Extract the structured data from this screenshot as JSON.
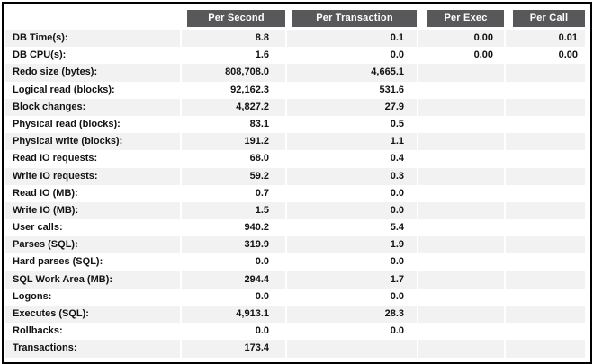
{
  "colors": {
    "header_bg": "#58585a",
    "header_text": "#ffffff",
    "row_alt_bg": "#f2f2f2",
    "frame_border": "#000000"
  },
  "table": {
    "name": "load-profile-statistics",
    "columns": [
      "Per Second",
      "Per Transaction",
      "Per Exec",
      "Per Call"
    ],
    "rows": [
      {
        "label": "DB Time(s):",
        "per_second": "8.8",
        "per_transaction": "0.1",
        "per_exec": "0.00",
        "per_call": "0.01"
      },
      {
        "label": "DB CPU(s):",
        "per_second": "1.6",
        "per_transaction": "0.0",
        "per_exec": "0.00",
        "per_call": "0.00"
      },
      {
        "label": "Redo size (bytes):",
        "per_second": "808,708.0",
        "per_transaction": "4,665.1",
        "per_exec": "",
        "per_call": ""
      },
      {
        "label": "Logical read (blocks):",
        "per_second": "92,162.3",
        "per_transaction": "531.6",
        "per_exec": "",
        "per_call": ""
      },
      {
        "label": "Block changes:",
        "per_second": "4,827.2",
        "per_transaction": "27.9",
        "per_exec": "",
        "per_call": ""
      },
      {
        "label": "Physical read (blocks):",
        "per_second": "83.1",
        "per_transaction": "0.5",
        "per_exec": "",
        "per_call": ""
      },
      {
        "label": "Physical write (blocks):",
        "per_second": "191.2",
        "per_transaction": "1.1",
        "per_exec": "",
        "per_call": ""
      },
      {
        "label": "Read IO requests:",
        "per_second": "68.0",
        "per_transaction": "0.4",
        "per_exec": "",
        "per_call": ""
      },
      {
        "label": "Write IO requests:",
        "per_second": "59.2",
        "per_transaction": "0.3",
        "per_exec": "",
        "per_call": ""
      },
      {
        "label": "Read IO (MB):",
        "per_second": "0.7",
        "per_transaction": "0.0",
        "per_exec": "",
        "per_call": ""
      },
      {
        "label": "Write IO (MB):",
        "per_second": "1.5",
        "per_transaction": "0.0",
        "per_exec": "",
        "per_call": ""
      },
      {
        "label": "User calls:",
        "per_second": "940.2",
        "per_transaction": "5.4",
        "per_exec": "",
        "per_call": ""
      },
      {
        "label": "Parses (SQL):",
        "per_second": "319.9",
        "per_transaction": "1.9",
        "per_exec": "",
        "per_call": ""
      },
      {
        "label": "Hard parses (SQL):",
        "per_second": "0.0",
        "per_transaction": "0.0",
        "per_exec": "",
        "per_call": ""
      },
      {
        "label": "SQL Work Area (MB):",
        "per_second": "294.4",
        "per_transaction": "1.7",
        "per_exec": "",
        "per_call": ""
      },
      {
        "label": "Logons:",
        "per_second": "0.0",
        "per_transaction": "0.0",
        "per_exec": "",
        "per_call": ""
      },
      {
        "label": "Executes (SQL):",
        "per_second": "4,913.1",
        "per_transaction": "28.3",
        "per_exec": "",
        "per_call": ""
      },
      {
        "label": "Rollbacks:",
        "per_second": "0.0",
        "per_transaction": "0.0",
        "per_exec": "",
        "per_call": ""
      },
      {
        "label": "Transactions:",
        "per_second": "173.4",
        "per_transaction": "",
        "per_exec": "",
        "per_call": ""
      }
    ]
  }
}
